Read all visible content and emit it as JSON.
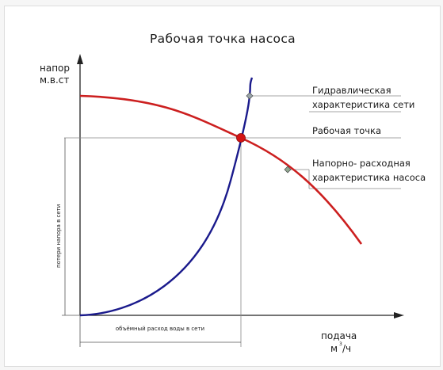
{
  "title": "Рабочая точка насоса",
  "y_axis": {
    "line1": "напор",
    "line2": "м.в.ст"
  },
  "x_axis": {
    "line1": "подача",
    "unit_base": "м",
    "unit_sup": "3",
    "unit_tail": "/ч"
  },
  "callouts": {
    "network": {
      "line1": "Гидравлическая",
      "line2": "характеристика сети"
    },
    "operating_point": {
      "text": "Рабочая точка"
    },
    "pump": {
      "line1": "Напорно- расходная",
      "line2": "характеристика насоса"
    }
  },
  "dimensions": {
    "head_loss": "потери напора в сети",
    "volume_flow": "объёмный расход воды в сети"
  },
  "colors": {
    "pump_curve": "#cc1f1f",
    "network_curve": "#1a1a8c",
    "operating_point": "#d41414",
    "axis": "#222222",
    "guide": "#888888"
  }
}
